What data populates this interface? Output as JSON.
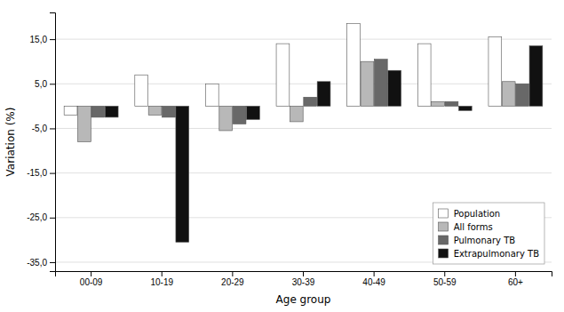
{
  "chart_data": {
    "type": "bar",
    "xlabel": "Age group",
    "ylabel": "Variation (%)",
    "categories": [
      "00-09",
      "10-19",
      "20-29",
      "30-39",
      "40-49",
      "50-59",
      "60+"
    ],
    "series": [
      {
        "name": "Population",
        "color": "#ffffff",
        "values": [
          -2.0,
          7.0,
          5.0,
          14.0,
          18.5,
          14.0,
          15.5
        ]
      },
      {
        "name": "All forms",
        "color": "#b8b8b8",
        "values": [
          -8.0,
          -2.0,
          -5.5,
          -3.5,
          10.0,
          1.0,
          5.5
        ]
      },
      {
        "name": "Pulmonary TB",
        "color": "#686868",
        "values": [
          -2.5,
          -2.5,
          -4.0,
          2.0,
          10.5,
          1.0,
          5.0
        ]
      },
      {
        "name": "Extrapulmonary TB",
        "color": "#111111",
        "values": [
          -2.5,
          -30.5,
          -3.0,
          5.5,
          8.0,
          -1.0,
          13.5
        ]
      }
    ],
    "ylim": [
      -37.0,
      21.0
    ],
    "yticks": [
      {
        "value": -35.0,
        "label": "-35,0"
      },
      {
        "value": -25.0,
        "label": "-25,0"
      },
      {
        "value": -15.0,
        "label": "-15,0"
      },
      {
        "value": -5.0,
        "label": "-5,0"
      },
      {
        "value": 5.0,
        "label": "5,0"
      },
      {
        "value": 15.0,
        "label": "15,0"
      }
    ],
    "grid": true,
    "legend": "lower right"
  }
}
